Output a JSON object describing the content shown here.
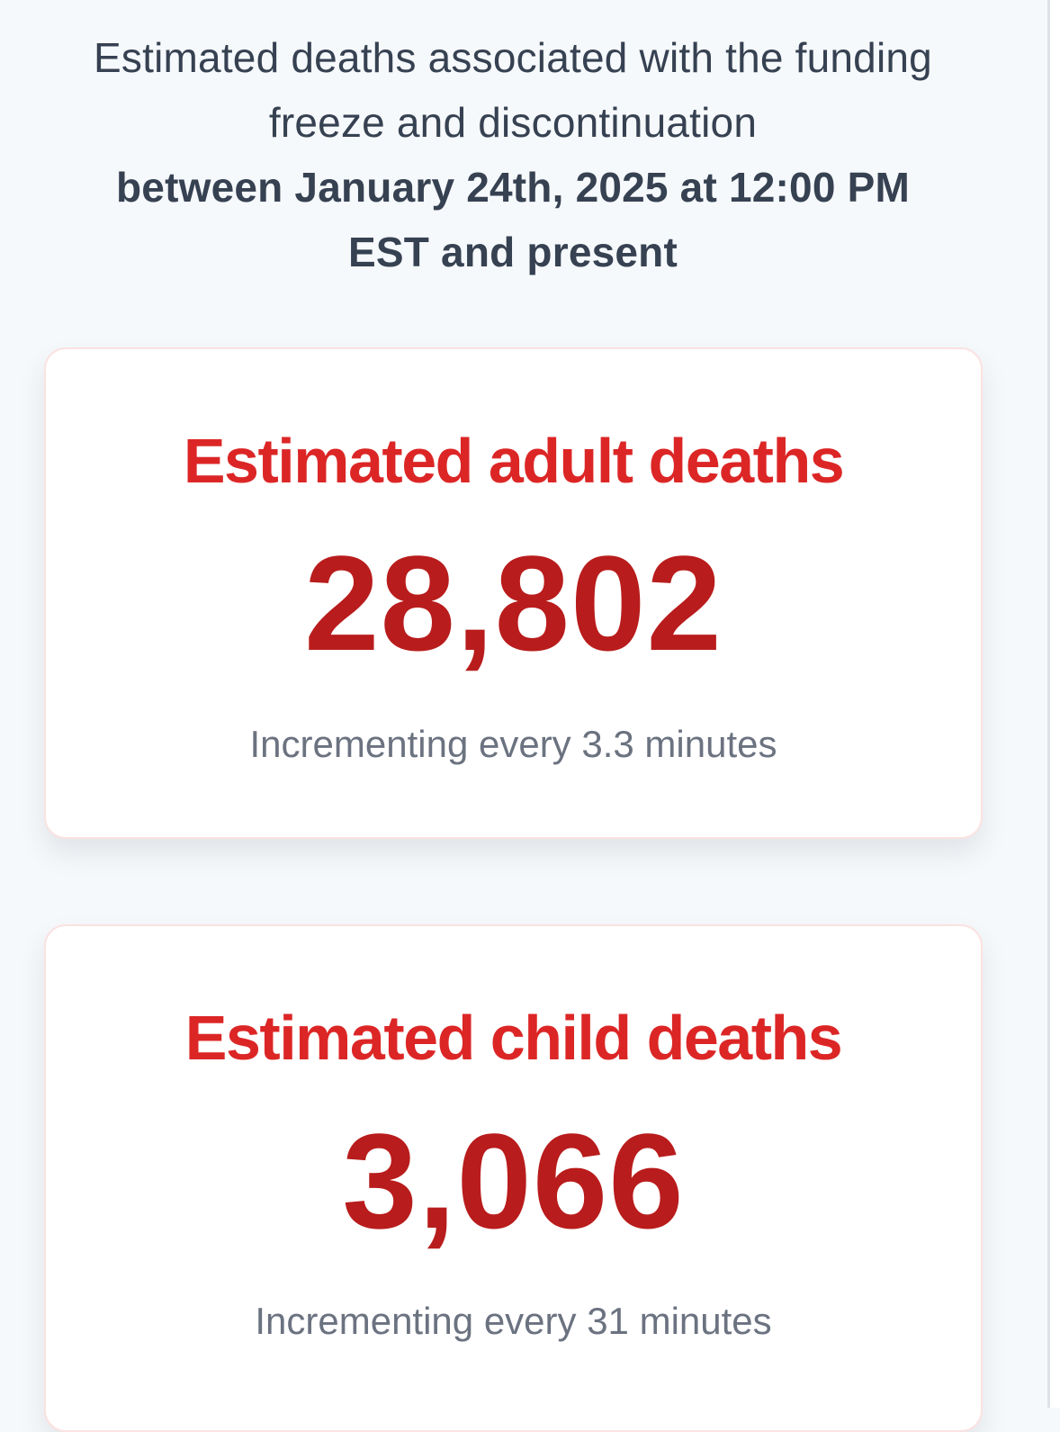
{
  "header": {
    "line1": "Estimated deaths associated with the funding",
    "line2": "freeze and discontinuation",
    "line3": "between January 24th, 2025 at 12:00 PM",
    "line4": "EST and present"
  },
  "cards": [
    {
      "title": "Estimated adult deaths",
      "value": "28,802",
      "note": "Incrementing every 3.3 minutes"
    },
    {
      "title": "Estimated child deaths",
      "value": "3,066",
      "note": "Incrementing every 31 minutes"
    }
  ],
  "colors": {
    "background": "#f6f9fb",
    "heading_text": "#364152",
    "card_title": "#dc2626",
    "card_value": "#b91c1c",
    "card_note": "#6b7280",
    "card_border": "#fbe2e2"
  }
}
